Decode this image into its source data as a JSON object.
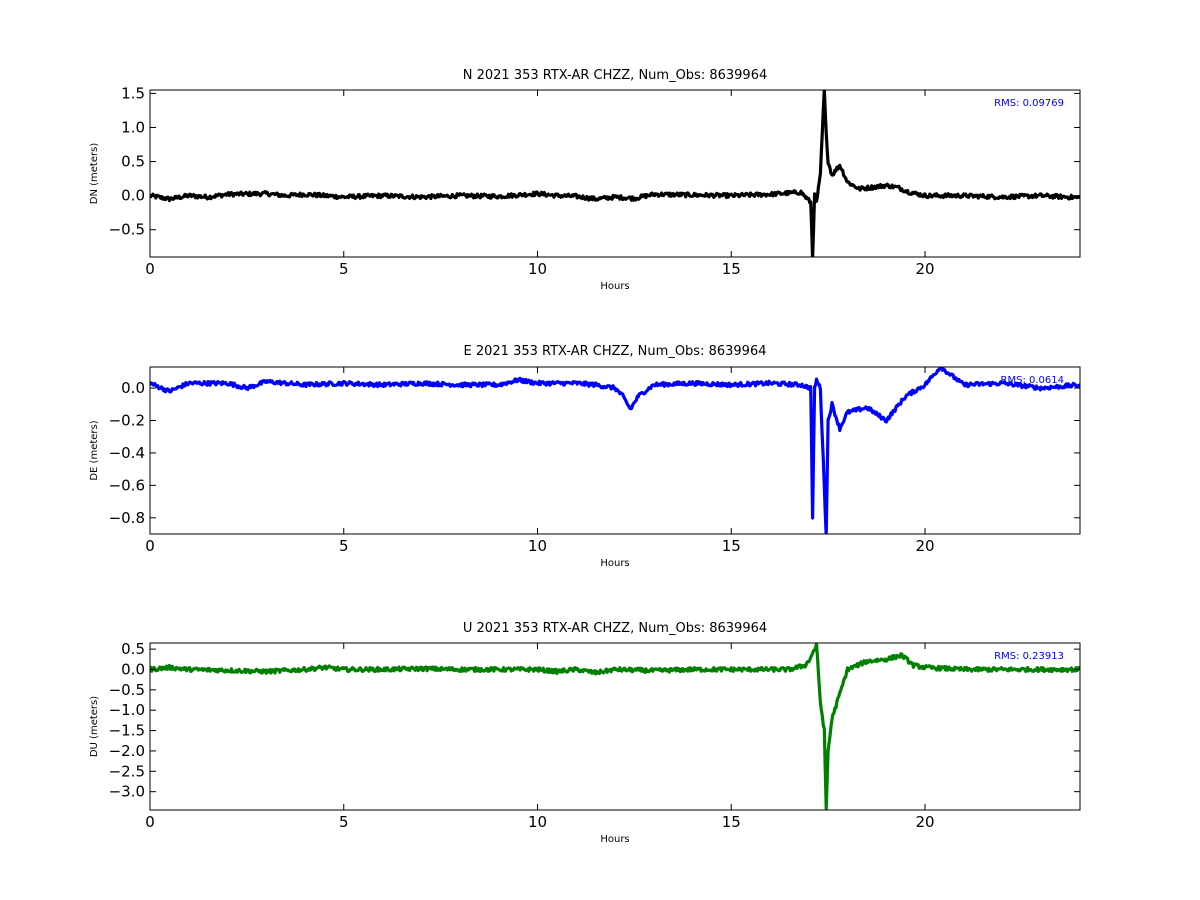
{
  "chart_data": [
    {
      "type": "line",
      "title": "N 2021 353 RTX-AR  CHZZ, Num_Obs: 8639964",
      "xlabel": "Hours",
      "ylabel": "DN (meters)",
      "xlim": [
        0,
        24
      ],
      "ylim": [
        -0.9,
        1.55
      ],
      "xticks": [
        0,
        5,
        10,
        15,
        20
      ],
      "yticks": [
        -0.5,
        0.0,
        0.5,
        1.0,
        1.5
      ],
      "ytick_labels": [
        "−0.5",
        "0.0",
        "0.5",
        "1.0",
        "1.5"
      ],
      "color": "#000000",
      "annotation": "RMS:  0.09769",
      "annotation_color": "#0000ff",
      "grid": false,
      "series": [
        {
          "x": [
            0,
            0.5,
            1,
            1.5,
            2,
            3,
            3.5,
            4,
            5,
            6,
            7,
            8,
            9,
            10,
            10.5,
            11,
            11.5,
            12,
            12.5,
            13,
            14,
            15,
            16,
            16.8,
            17.05,
            17.1,
            17.15,
            17.2,
            17.3,
            17.4,
            17.45,
            17.5,
            17.6,
            17.8,
            18.0,
            18.3,
            18.6,
            19.0,
            19.3,
            19.6,
            20.0,
            21,
            22,
            23,
            24
          ],
          "y": [
            0.0,
            -0.05,
            0.0,
            -0.02,
            0.02,
            0.03,
            0.0,
            0.02,
            -0.02,
            0.0,
            -0.02,
            0.0,
            -0.01,
            0.03,
            0.0,
            -0.01,
            -0.05,
            -0.02,
            -0.04,
            0.02,
            0.01,
            0.0,
            0.02,
            0.05,
            -0.1,
            -0.9,
            0.0,
            -0.1,
            0.3,
            1.55,
            0.9,
            0.5,
            0.3,
            0.45,
            0.2,
            0.1,
            0.12,
            0.15,
            0.12,
            0.05,
            0.0,
            0.0,
            -0.02,
            0.0,
            -0.03
          ]
        }
      ]
    },
    {
      "type": "line",
      "title": "E 2021 353 RTX-AR  CHZZ, Num_Obs: 8639964",
      "xlabel": "Hours",
      "ylabel": "DE (meters)",
      "xlim": [
        0,
        24
      ],
      "ylim": [
        -0.9,
        0.13
      ],
      "xticks": [
        0,
        5,
        10,
        15,
        20
      ],
      "yticks": [
        -0.8,
        -0.6,
        -0.4,
        -0.2,
        0.0
      ],
      "ytick_labels": [
        "−0.8",
        "−0.6",
        "−0.4",
        "−0.2",
        "0.0"
      ],
      "color": "#0000ff",
      "annotation": "RMS:  0.0614",
      "annotation_color": "#0000ff",
      "grid": false,
      "series": [
        {
          "x": [
            0,
            0.5,
            1,
            2,
            2.5,
            3,
            4,
            5,
            6,
            7,
            8,
            9,
            9.5,
            10,
            11,
            11.5,
            12,
            12.2,
            12.4,
            12.6,
            13,
            14,
            15,
            16,
            16.8,
            17.05,
            17.1,
            17.15,
            17.2,
            17.3,
            17.4,
            17.45,
            17.5,
            17.6,
            17.8,
            18.0,
            18.5,
            19.0,
            19.5,
            20.0,
            20.4,
            21,
            22,
            23,
            24
          ],
          "y": [
            0.03,
            -0.02,
            0.03,
            0.03,
            0.0,
            0.04,
            0.02,
            0.03,
            0.02,
            0.03,
            0.02,
            0.02,
            0.05,
            0.03,
            0.03,
            0.02,
            0.0,
            -0.05,
            -0.13,
            -0.05,
            0.02,
            0.03,
            0.02,
            0.03,
            0.02,
            0.0,
            -0.8,
            0.0,
            0.05,
            0.0,
            -0.6,
            -0.9,
            -0.2,
            -0.1,
            -0.25,
            -0.15,
            -0.12,
            -0.2,
            -0.05,
            0.02,
            0.13,
            0.02,
            0.03,
            0.0,
            0.02
          ]
        }
      ]
    },
    {
      "type": "line",
      "title": "U 2021 353 RTX-AR  CHZZ, Num_Obs: 8639964",
      "xlabel": "Hours",
      "ylabel": "DU (meters)",
      "xlim": [
        0,
        24
      ],
      "ylim": [
        -3.45,
        0.65
      ],
      "xticks": [
        0,
        5,
        10,
        15,
        20
      ],
      "yticks": [
        -3.0,
        -2.5,
        -2.0,
        -1.5,
        -1.0,
        -0.5,
        0.0,
        0.5
      ],
      "ytick_labels": [
        "−3.0",
        "−2.5",
        "−2.0",
        "−1.5",
        "−1.0",
        "−0.5",
        "0.0",
        "0.5"
      ],
      "color": "#008000",
      "annotation": "RMS:  0.23913",
      "annotation_color": "#0000ff",
      "grid": false,
      "series": [
        {
          "x": [
            0,
            0.5,
            1,
            2,
            3,
            4,
            4.5,
            5,
            6,
            7,
            8,
            9,
            10,
            10.5,
            11,
            11.5,
            12,
            13,
            14,
            15,
            16,
            16.5,
            16.9,
            17.0,
            17.1,
            17.2,
            17.3,
            17.4,
            17.45,
            17.5,
            17.6,
            17.8,
            18.0,
            18.5,
            19.0,
            19.4,
            19.7,
            20.0,
            21,
            22,
            23,
            24
          ],
          "y": [
            0.0,
            0.05,
            0.0,
            -0.02,
            -0.05,
            0.0,
            0.05,
            0.0,
            0.0,
            0.02,
            0.0,
            0.0,
            0.0,
            -0.05,
            0.0,
            -0.08,
            0.0,
            -0.03,
            0.0,
            0.0,
            0.0,
            0.0,
            0.1,
            0.2,
            0.4,
            0.6,
            -0.8,
            -1.5,
            -3.4,
            -2.0,
            -1.2,
            -0.6,
            0.0,
            0.2,
            0.25,
            0.35,
            0.1,
            0.05,
            0.0,
            0.0,
            0.0,
            0.0
          ]
        }
      ]
    }
  ]
}
